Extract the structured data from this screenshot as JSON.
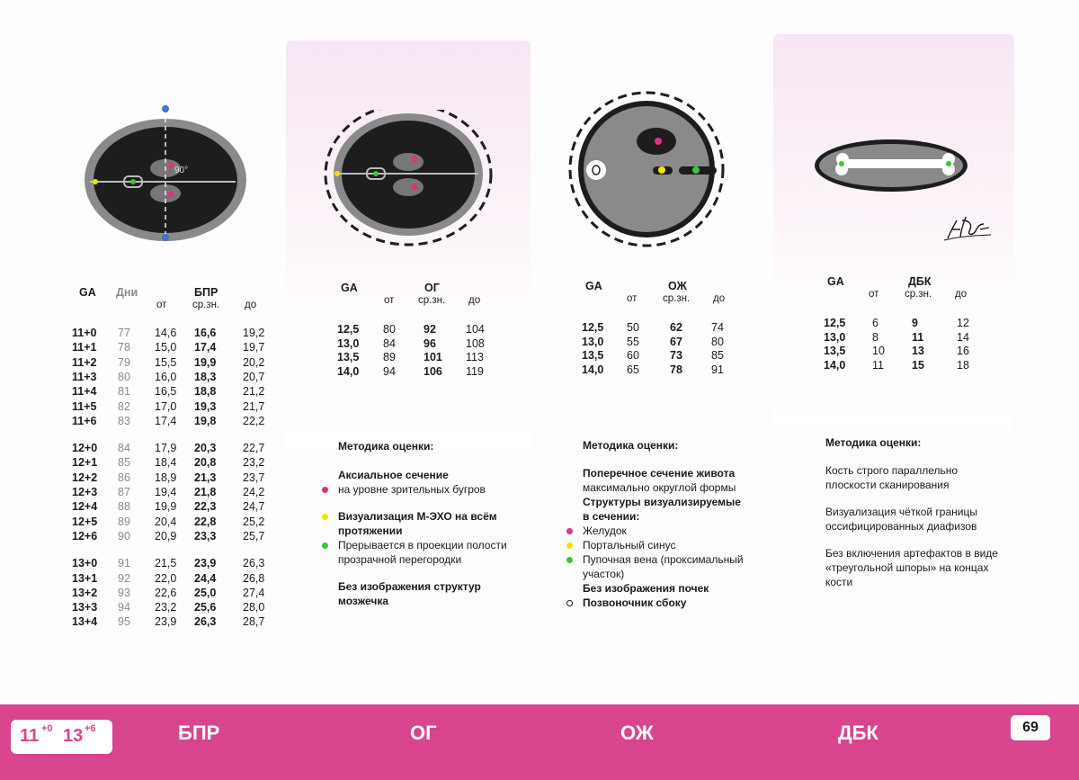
{
  "bpr_table": {
    "col_ga": "GA",
    "col_days": "Дни",
    "title": "БПР",
    "sub_from": "от",
    "sub_mean": "ср.зн.",
    "sub_to": "до",
    "rows": [
      [
        "11+0",
        "77",
        "14,6",
        "16,6",
        "19,2"
      ],
      [
        "11+1",
        "78",
        "15,0",
        "17,4",
        "19,7"
      ],
      [
        "11+2",
        "79",
        "15,5",
        "19,9",
        "20,2"
      ],
      [
        "11+3",
        "80",
        "16,0",
        "18,3",
        "20,7"
      ],
      [
        "11+4",
        "81",
        "16,5",
        "18,8",
        "21,2"
      ],
      [
        "11+5",
        "82",
        "17,0",
        "19,3",
        "21,7"
      ],
      [
        "11+6",
        "83",
        "17,4",
        "19,8",
        "22,2"
      ],
      [
        "12+0",
        "84",
        "17,9",
        "20,3",
        "22,7"
      ],
      [
        "12+1",
        "85",
        "18,4",
        "20,8",
        "23,2"
      ],
      [
        "12+2",
        "86",
        "18,9",
        "21,3",
        "23,7"
      ],
      [
        "12+3",
        "87",
        "19,4",
        "21,8",
        "24,2"
      ],
      [
        "12+4",
        "88",
        "19,9",
        "22,3",
        "24,7"
      ],
      [
        "12+5",
        "89",
        "20,4",
        "22,8",
        "25,2"
      ],
      [
        "12+6",
        "90",
        "20,9",
        "23,3",
        "25,7"
      ],
      [
        "13+0",
        "91",
        "21,5",
        "23,9",
        "26,3"
      ],
      [
        "13+1",
        "92",
        "22,0",
        "24,4",
        "26,8"
      ],
      [
        "13+2",
        "93",
        "22,6",
        "25,0",
        "27,4"
      ],
      [
        "13+3",
        "94",
        "23,2",
        "25,6",
        "28,0"
      ],
      [
        "13+4",
        "95",
        "23,9",
        "26,3",
        "28,7"
      ]
    ]
  },
  "og_table": {
    "col_ga": "GA",
    "title": "ОГ",
    "sub_from": "от",
    "sub_mean": "ср.зн.",
    "sub_to": "до",
    "rows": [
      [
        "12,5",
        "80",
        "92",
        "104"
      ],
      [
        "13,0",
        "84",
        "96",
        "108"
      ],
      [
        "13,5",
        "89",
        "101",
        "113"
      ],
      [
        "14,0",
        "94",
        "106",
        "119"
      ]
    ]
  },
  "ozh_table": {
    "col_ga": "GA",
    "title": "ОЖ",
    "sub_from": "от",
    "sub_mean": "ср.зн.",
    "sub_to": "до",
    "rows": [
      [
        "12,5",
        "50",
        "62",
        "74"
      ],
      [
        "13,0",
        "55",
        "67",
        "80"
      ],
      [
        "13,5",
        "60",
        "73",
        "85"
      ],
      [
        "14,0",
        "65",
        "78",
        "91"
      ]
    ]
  },
  "dbk_table": {
    "col_ga": "GA",
    "title": "ДБК",
    "sub_from": "от",
    "sub_mean": "ср.зн.",
    "sub_to": "до",
    "rows": [
      [
        "12,5",
        "6",
        "9",
        "12"
      ],
      [
        "13,0",
        "8",
        "11",
        "14"
      ],
      [
        "13,5",
        "10",
        "13",
        "16"
      ],
      [
        "14,0",
        "11",
        "15",
        "18"
      ]
    ]
  },
  "bpr_figure": {
    "angle_label": "90°"
  },
  "notes_og": {
    "heading": "Методика оценки:",
    "sec1_title": "Аксиальное сечение",
    "sec1_item": "на уровне зрительных бугров",
    "sec2_title_l1": "Визуализация М-ЭХО на всём",
    "sec2_title_l2": "протяжении",
    "sec2_item_l1": "Прерывается в проекции полости",
    "sec2_item_l2": "прозрачной перегородки",
    "sec3_l1": "Без изображения структур",
    "sec3_l2": "мозжечка"
  },
  "notes_ozh": {
    "heading": "Методика оценки:",
    "l1": "Поперечное сечение живота",
    "l2": "максимально округлой формы",
    "l3": "Структуры визуализируемые",
    "l4": "в сечении:",
    "i1": "Желудок",
    "i2": "Портальный синус",
    "i3a": "Пупочная вена (проксимальный",
    "i3b": "участок)",
    "l5": "Без изображения почек",
    "i4": "Позвоночник сбоку"
  },
  "notes_dbk": {
    "heading": "Методика оценки:",
    "p1a": "Кость строго параллельно",
    "p1b": "плоскости сканирования",
    "p2a": "Визуализация чёткой границы",
    "p2b": "оссифицированных диафизов",
    "p3a": "Без включения артефактов в виде",
    "p3b": "«треугольной шпоры» на концах",
    "p3c": "кости"
  },
  "footer": {
    "ga_from": "11",
    "ga_from_sup": "+0",
    "ga_to": "13",
    "ga_to_sup": "+6",
    "label_bpr": "БПР",
    "label_og": "ОГ",
    "label_ozh": "ОЖ",
    "label_dbk": "ДБК",
    "page": "69"
  },
  "colors": {
    "accent": "#d9448f",
    "pink_dot": "#e0337f",
    "yellow_dot": "#f2e400",
    "green_dot": "#3cc43c",
    "blue_dot": "#3a78c8"
  }
}
